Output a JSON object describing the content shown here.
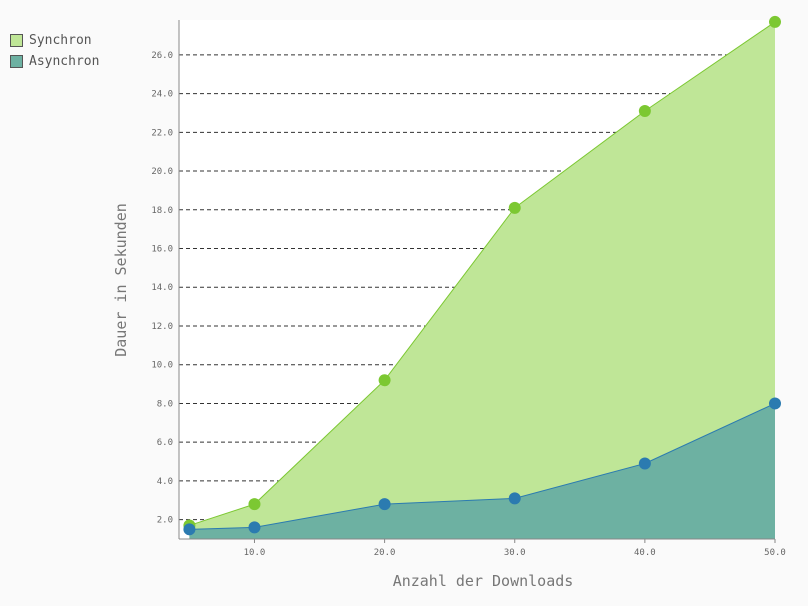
{
  "chart_data": {
    "type": "area",
    "xlabel": "Anzahl der Downloads",
    "ylabel": "Dauer in Sekunden",
    "x": [
      5,
      10,
      20,
      30,
      40,
      50
    ],
    "x_ticks": [
      10,
      20,
      30,
      40,
      50
    ],
    "x_tick_labels": [
      "10.0",
      "20.0",
      "30.0",
      "40.0",
      "50.0"
    ],
    "y_ticks": [
      2,
      4,
      6,
      8,
      10,
      12,
      14,
      16,
      18,
      20,
      22,
      24,
      26
    ],
    "y_tick_labels": [
      "2.0",
      "4.0",
      "6.0",
      "8.0",
      "10.0",
      "12.0",
      "14.0",
      "16.0",
      "18.0",
      "20.0",
      "22.0",
      "24.0",
      "26.0"
    ],
    "xlim": [
      4.2,
      50
    ],
    "ylim": [
      1,
      27.8
    ],
    "grid": true,
    "legend_position": "top-left",
    "series": [
      {
        "name": "Synchron",
        "values": [
          1.7,
          2.8,
          9.2,
          18.1,
          23.1,
          27.7
        ],
        "color": "#7cc832",
        "fill": "#bfe697"
      },
      {
        "name": "Asynchron",
        "values": [
          1.5,
          1.6,
          2.8,
          3.1,
          4.9,
          8.0
        ],
        "color": "#2b7bb0",
        "fill": "#6db1a2"
      }
    ]
  }
}
